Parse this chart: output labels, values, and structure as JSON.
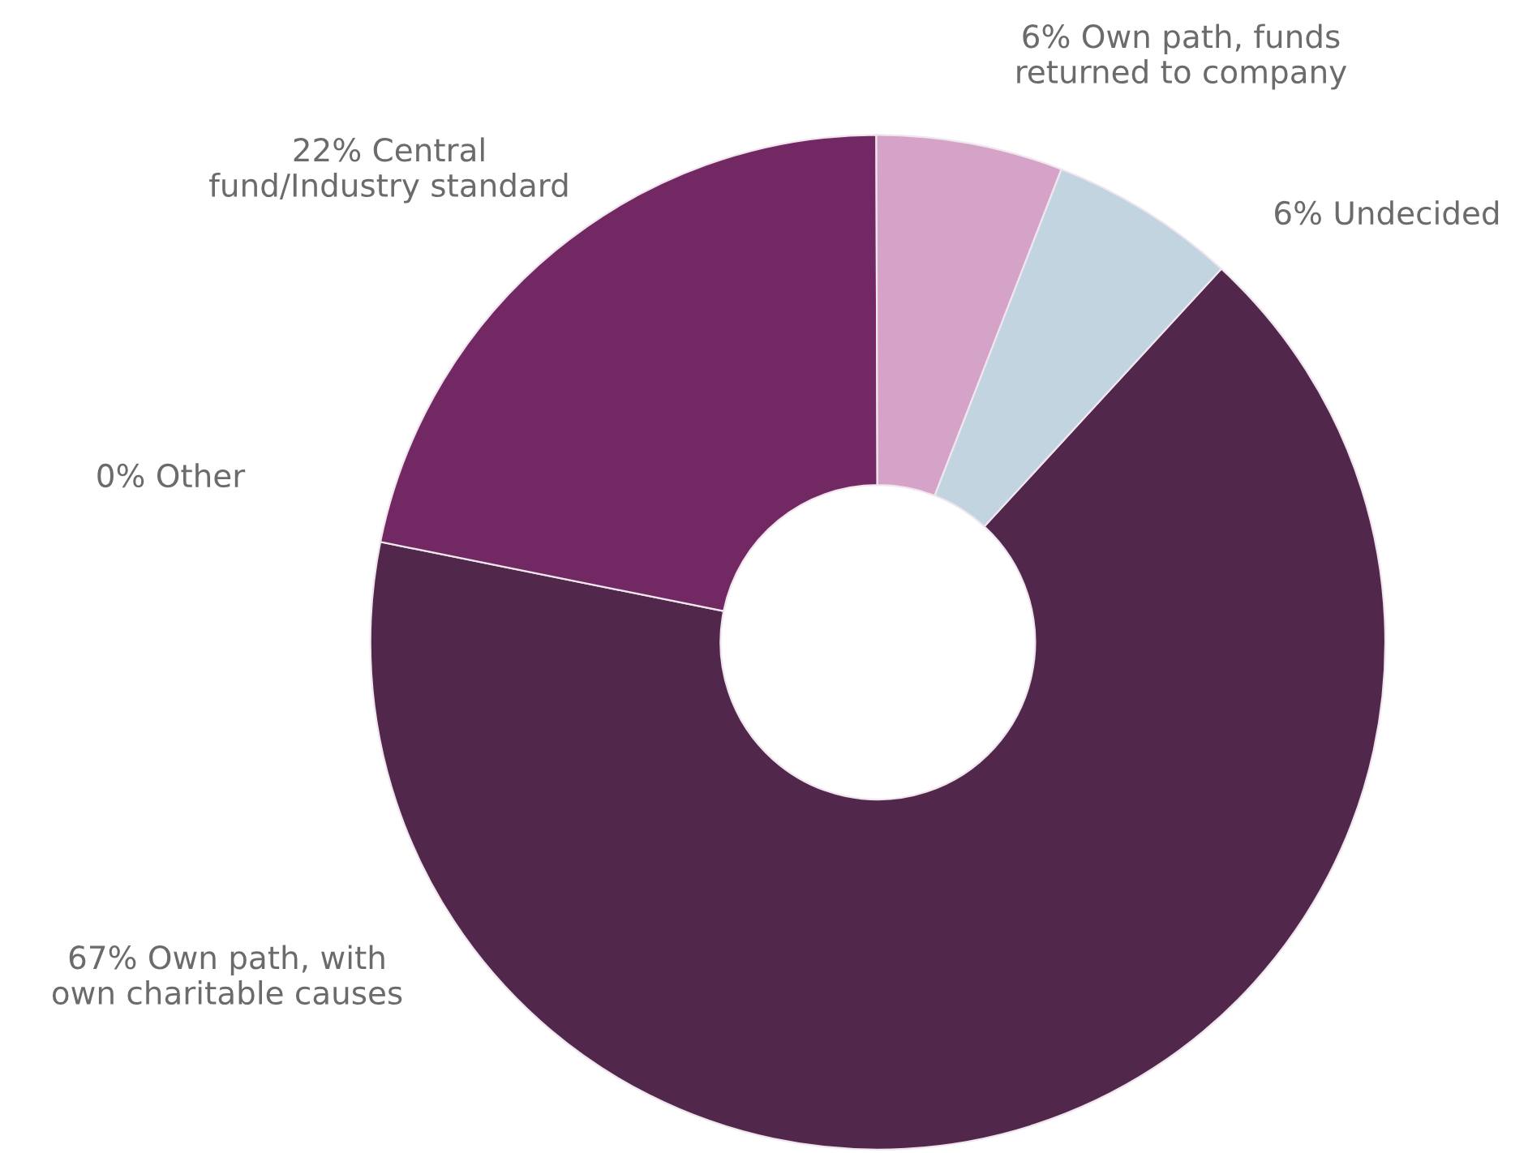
{
  "chart_data": {
    "type": "donut",
    "categories": [
      "Own path, with\nown charitable causes",
      "Other",
      "Central\nfund/Industry standard",
      "Own path, funds\nreturned to company",
      "Undecided"
    ],
    "values": [
      67,
      0,
      22,
      6,
      6
    ],
    "value_labels": [
      "67%",
      "0%",
      "22%",
      "6%",
      "6%"
    ],
    "colors": [
      "#52274c",
      "#e8c8e0",
      "#722862",
      "#d6a3c8",
      "#c3d4e1"
    ],
    "legend": false
  }
}
